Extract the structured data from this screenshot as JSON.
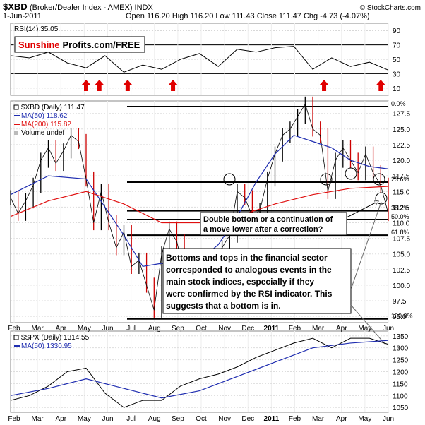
{
  "header": {
    "symbol": "$XBD",
    "desc": "(Broker/Dealer Index - AMEX) INDX",
    "date": "1-Jun-2011",
    "ohlc": "Open 116.20  High 116.20  Low 111.43  Close 111.47  Chg -4.73 (-4.07%)",
    "credit": "© StockCharts.com"
  },
  "rsi": {
    "label": "RSI(14) 35.05",
    "ticks": [
      90,
      70,
      50,
      30,
      10
    ],
    "arrows_count": 6
  },
  "main": {
    "legend": [
      "$XBD (Daily) 111.47",
      "MA(50) 118.62",
      "MA(200) 115.82",
      "Volume undef"
    ],
    "yticks": [
      127.5,
      125.0,
      122.5,
      120.0,
      117.5,
      115.0,
      112.5,
      110.0,
      107.5,
      105.0,
      102.5,
      100.0,
      97.5,
      95.0
    ],
    "fib_labels": [
      "0.0%",
      "23.6%",
      "38.2%",
      "50.0%",
      "61.8%",
      "100.0%"
    ]
  },
  "xlabels": [
    "Feb",
    "Mar",
    "Apr",
    "May",
    "Jun",
    "Jul",
    "Aug",
    "Sep",
    "Oct",
    "Nov",
    "Dec",
    "2011",
    "Feb",
    "Mar",
    "Apr",
    "May",
    "Jun"
  ],
  "spx": {
    "legend": [
      "$SPX (Daily) 1314.55",
      "MA(50) 1330.95"
    ],
    "yticks": [
      1350,
      1300,
      1250,
      1200,
      1150,
      1100,
      1050
    ]
  },
  "annotations": {
    "logo_red": "Sunshine",
    "logo_black": "Profits.com/FREE",
    "box1": [
      "Double bottom or a continuation of",
      "a move lower after a correction?"
    ],
    "box2": [
      "Bottoms and tops in the financial sector",
      "corresponded to analogous events in the",
      "main stock indices, especially if they",
      "were confirmed by the RSI indicator. This",
      "suggests that a bottom is in."
    ]
  },
  "colors": {
    "price": "#000000",
    "down_bar": "#cc0000",
    "ma50": "#1f2db0",
    "ma200": "#e01010",
    "rsi_arrow": "#e00000",
    "logo_red": "#e00000",
    "rsi_fill": "#b0b0b0"
  },
  "chart_data": [
    {
      "type": "line",
      "title": "RSI(14) 35.05",
      "series": [
        {
          "name": "RSI(14)",
          "x": [
            0,
            0.05,
            0.1,
            0.15,
            0.2,
            0.25,
            0.3,
            0.35,
            0.4,
            0.45,
            0.5,
            0.55,
            0.6,
            0.65,
            0.7,
            0.75,
            0.8,
            0.85,
            0.9,
            0.95,
            1
          ],
          "values": [
            55,
            52,
            60,
            45,
            38,
            55,
            32,
            42,
            36,
            50,
            58,
            40,
            64,
            60,
            66,
            68,
            36,
            52,
            40,
            46,
            35
          ]
        }
      ],
      "ylim": [
        0,
        100
      ],
      "yticks": [
        90,
        70,
        50,
        30,
        10
      ]
    },
    {
      "type": "line",
      "title": "$XBD (Daily) 111.47",
      "series": [
        {
          "name": "$XBD (Daily) 111.47",
          "x": [
            0,
            0.02,
            0.04,
            0.06,
            0.08,
            0.1,
            0.12,
            0.14,
            0.16,
            0.18,
            0.2,
            0.22,
            0.24,
            0.26,
            0.28,
            0.3,
            0.32,
            0.34,
            0.36,
            0.38,
            0.4,
            0.42,
            0.44,
            0.46,
            0.48,
            0.5,
            0.52,
            0.54,
            0.56,
            0.58,
            0.6,
            0.62,
            0.64,
            0.66,
            0.68,
            0.7,
            0.72,
            0.74,
            0.76,
            0.78,
            0.8,
            0.82,
            0.84,
            0.86,
            0.88,
            0.9,
            0.92,
            0.94,
            0.96,
            0.98,
            1
          ],
          "values": [
            114.0,
            111.5,
            113.5,
            116.0,
            120.0,
            122.0,
            119.5,
            121.5,
            124.0,
            123.0,
            117.0,
            110.0,
            115.0,
            110.0,
            106.0,
            108.5,
            103.0,
            104.0,
            100.0,
            96.0,
            105.0,
            109.0,
            107.0,
            102.0,
            103.0,
            104.5,
            104.0,
            104.5,
            106.0,
            108.0,
            115.0,
            114.0,
            111.0,
            112.0,
            117.0,
            121.0,
            124.0,
            125.0,
            127.0,
            129.0,
            125.0,
            124.0,
            115.0,
            120.0,
            122.0,
            120.0,
            118.0,
            121.0,
            118.0,
            116.0,
            111.47
          ]
        },
        {
          "name": "MA(50) 118.62",
          "x": [
            0,
            0.1,
            0.2,
            0.3,
            0.35,
            0.4,
            0.45,
            0.5,
            0.55,
            0.6,
            0.65,
            0.7,
            0.75,
            0.8,
            0.85,
            0.9,
            0.95,
            1
          ],
          "values": [
            114.5,
            117.5,
            117.0,
            108.0,
            103.0,
            103.5,
            103.0,
            104.0,
            106.5,
            111.0,
            116.5,
            121.0,
            124.0,
            123.0,
            122.0,
            120.0,
            119.0,
            118.62
          ]
        },
        {
          "name": "MA(200) 115.82",
          "x": [
            0,
            0.1,
            0.2,
            0.3,
            0.4,
            0.5,
            0.6,
            0.7,
            0.8,
            0.9,
            1
          ],
          "values": [
            111.0,
            113.5,
            115.0,
            113.0,
            110.0,
            110.0,
            111.0,
            113.0,
            114.5,
            115.5,
            115.82
          ]
        }
      ],
      "ylim": [
        94,
        129.5
      ],
      "yticks": [
        127.5,
        125.0,
        122.5,
        120.0,
        117.5,
        115.0,
        112.5,
        110.0,
        107.5,
        105.0,
        102.5,
        100.0,
        97.5,
        95.0
      ],
      "horizontal_levels": [
        {
          "label": "0.0%",
          "value": 128.6
        },
        {
          "label": "23.6%",
          "value": 116.5
        },
        {
          "label": "38.2%",
          "value": 111.9
        },
        {
          "label": "50.0%",
          "value": 110.5
        },
        {
          "label": "61.8%",
          "value": 108.0
        },
        {
          "label": "100.0%",
          "value": 94.6
        }
      ]
    },
    {
      "type": "line",
      "title": "$SPX (Daily) 1314.55",
      "series": [
        {
          "name": "$SPX (Daily) 1314.55",
          "x": [
            0,
            0.05,
            0.1,
            0.15,
            0.2,
            0.25,
            0.3,
            0.35,
            0.4,
            0.45,
            0.5,
            0.55,
            0.6,
            0.65,
            0.7,
            0.75,
            0.8,
            0.85,
            0.9,
            0.95,
            1
          ],
          "values": [
            1080,
            1100,
            1140,
            1200,
            1215,
            1110,
            1050,
            1080,
            1080,
            1140,
            1170,
            1190,
            1220,
            1260,
            1290,
            1320,
            1340,
            1300,
            1340,
            1340,
            1314.55
          ]
        },
        {
          "name": "MA(50) 1330.95",
          "x": [
            0,
            0.1,
            0.2,
            0.3,
            0.4,
            0.5,
            0.6,
            0.7,
            0.8,
            0.9,
            1
          ],
          "values": [
            1100,
            1130,
            1170,
            1130,
            1090,
            1120,
            1180,
            1240,
            1300,
            1320,
            1330.95
          ]
        }
      ],
      "ylim": [
        1030,
        1370
      ],
      "yticks": [
        1350,
        1300,
        1250,
        1200,
        1150,
        1100,
        1050
      ]
    }
  ]
}
